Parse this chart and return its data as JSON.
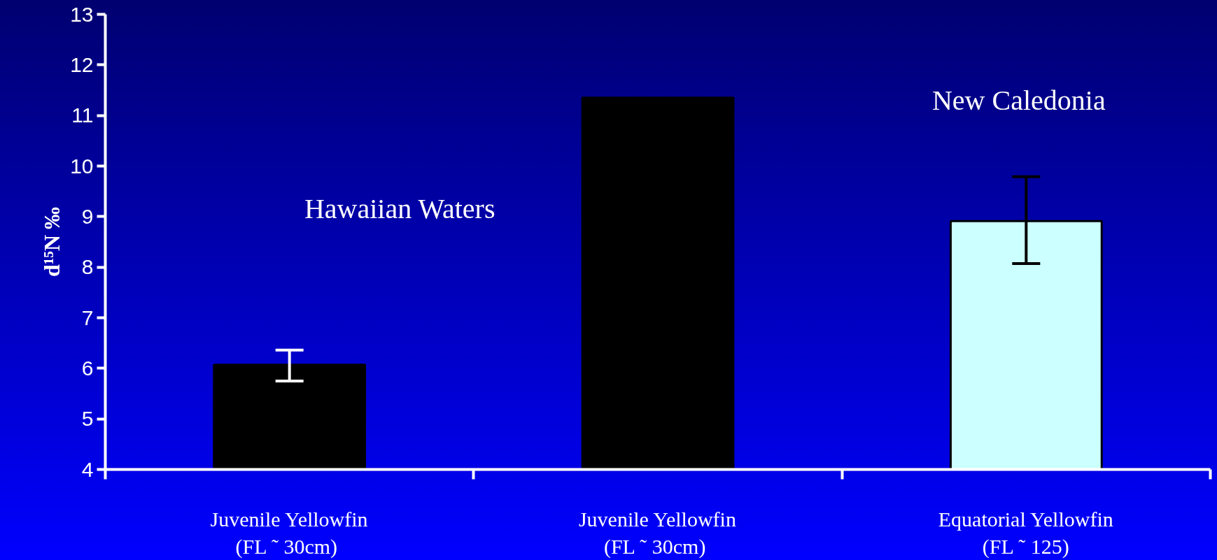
{
  "chart_data": {
    "type": "bar",
    "ylabel": "d¹⁵N ‰",
    "categories": [
      "Juvenile Yellowfin\n(FL ˜  30cm)",
      "Juvenile Yellowfin\n(FL ˜  30cm)",
      "Equatorial Yellowfin\n(FL ˜ 125)"
    ],
    "values": [
      6.07,
      11.35,
      8.91
    ],
    "colors": [
      "#000000",
      "#000000",
      "#ccffff"
    ],
    "errors": [
      [
        5.75,
        6.36
      ],
      null,
      [
        8.07,
        9.79
      ]
    ],
    "annotations": [
      "Hawaiian Waters",
      "New Caledonia"
    ],
    "ylim": [
      4,
      13
    ],
    "yticks": [
      4,
      5,
      6,
      7,
      8,
      9,
      10,
      11,
      12,
      13
    ],
    "grid": false
  }
}
